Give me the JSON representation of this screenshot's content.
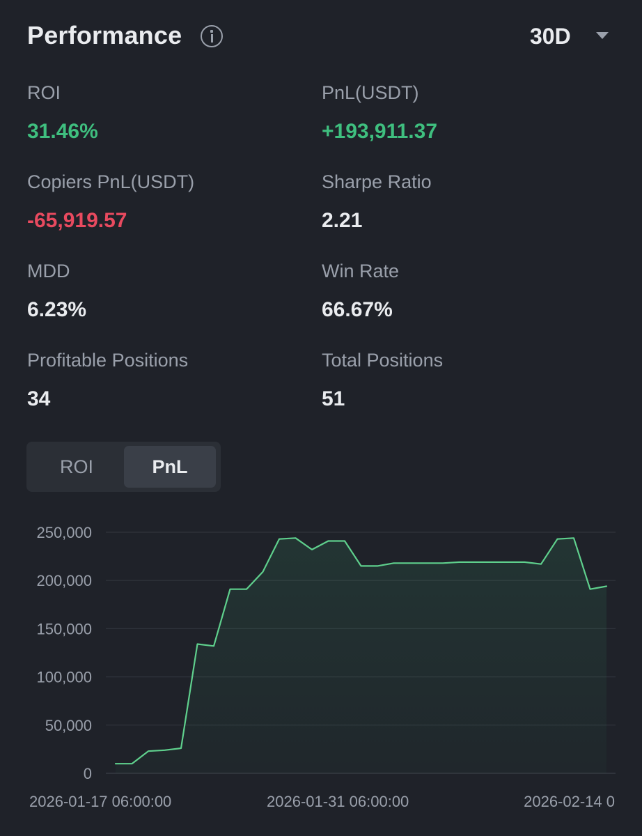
{
  "header": {
    "title": "Performance",
    "period": "30D"
  },
  "stats": [
    {
      "label": "ROI",
      "value": "31.46%",
      "tone": "pos"
    },
    {
      "label": "PnL(USDT)",
      "value": "+193,911.37",
      "tone": "pos"
    },
    {
      "label": "Copiers PnL(USDT)",
      "value": "-65,919.57",
      "tone": "neg"
    },
    {
      "label": "Sharpe Ratio",
      "value": "2.21",
      "tone": ""
    },
    {
      "label": "MDD",
      "value": "6.23%",
      "tone": ""
    },
    {
      "label": "Win Rate",
      "value": "66.67%",
      "tone": ""
    },
    {
      "label": "Profitable Positions",
      "value": "34",
      "tone": ""
    },
    {
      "label": "Total Positions",
      "value": "51",
      "tone": ""
    }
  ],
  "toggle": {
    "roi_label": "ROI",
    "pnl_label": "PnL",
    "selected": "PnL"
  },
  "colors": {
    "background": "#1f2229",
    "positive": "#3fbf7f",
    "negative": "#e84a5f",
    "muted": "#9aa0ab",
    "line": "#5fd08d"
  },
  "chart_data": {
    "type": "area",
    "title": "",
    "xlabel": "",
    "ylabel": "",
    "ylim": [
      0,
      250000
    ],
    "yticks": [
      "0",
      "50,000",
      "100,000",
      "150,000",
      "200,000",
      "250,000"
    ],
    "xticks": [
      "2026-01-17 06:00:00",
      "2026-01-31 06:00:00",
      "2026-02-14 0"
    ],
    "grid": true,
    "series": [
      {
        "values": [
          10000,
          10000,
          23000,
          24000,
          26000,
          134000,
          132000,
          191000,
          191000,
          209000,
          243000,
          244000,
          232000,
          241000,
          241000,
          215000,
          215000,
          218000,
          218000,
          218000,
          218000,
          219000,
          219000,
          219000,
          219000,
          219000,
          217000,
          243000,
          244000,
          191000,
          194000
        ]
      }
    ]
  }
}
